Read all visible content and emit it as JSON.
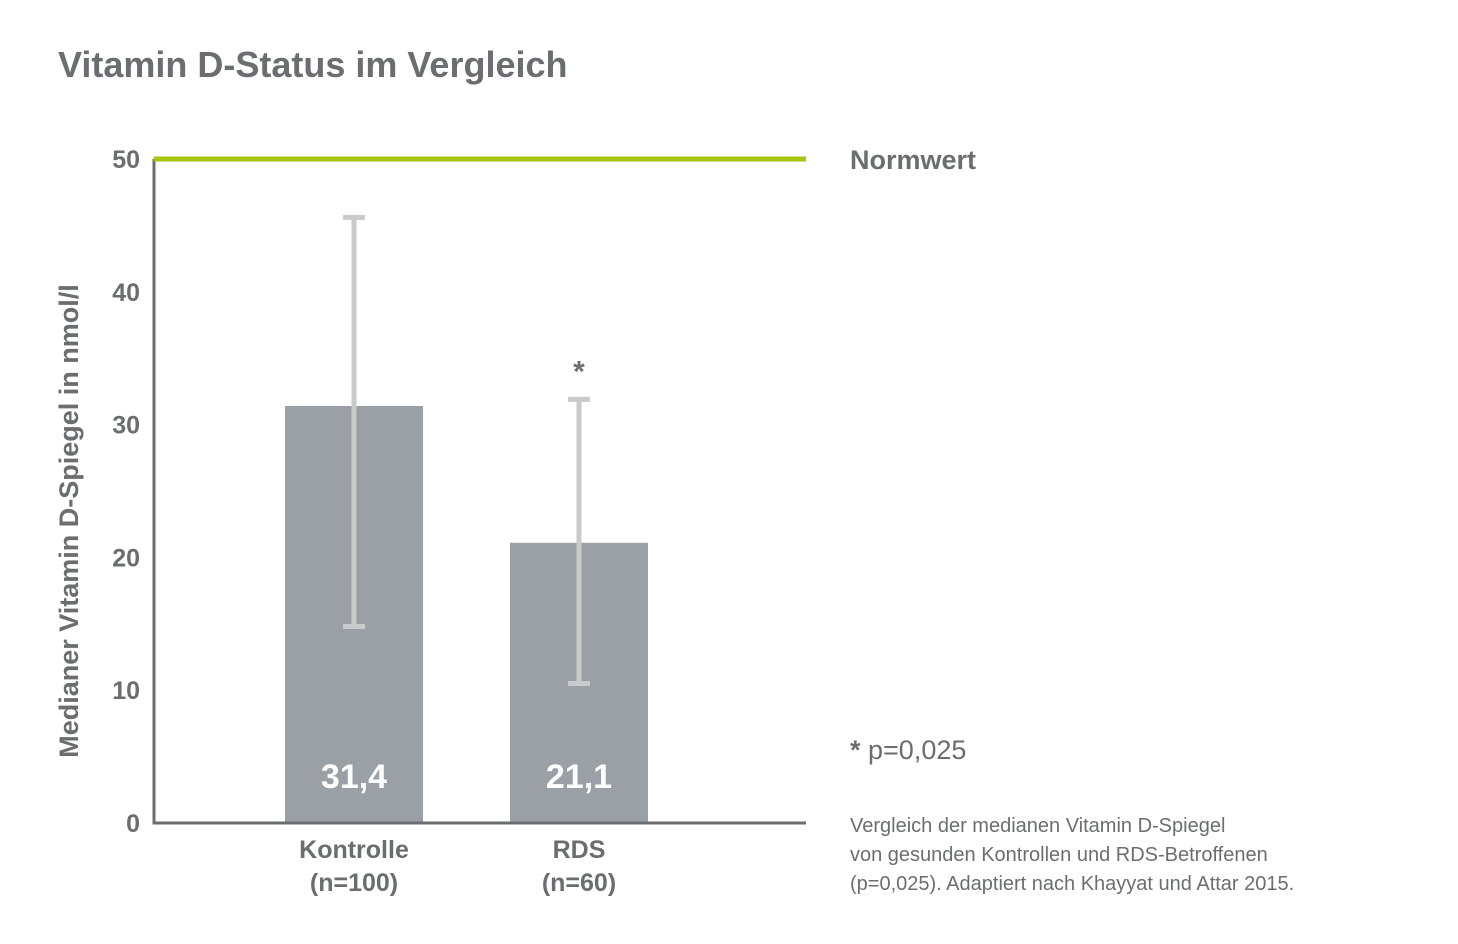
{
  "title": "Vitamin D-Status im Vergleich",
  "chart_data": {
    "type": "bar",
    "ylabel": "Medianer Vitamin D-Spiegel in nmol/l",
    "ylim": [
      0,
      50
    ],
    "yticks": [
      0,
      10,
      20,
      30,
      40,
      50
    ],
    "categories": [
      {
        "line1": "Kontrolle",
        "line2": "(n=100)"
      },
      {
        "line1": "RDS",
        "line2": "(n=60)"
      }
    ],
    "values": [
      31.4,
      21.1
    ],
    "value_labels": [
      "31,4",
      "21,1"
    ],
    "error_bars": [
      {
        "low": 14.8,
        "high": 45.6
      },
      {
        "low": 10.5,
        "high": 31.9
      }
    ],
    "significance_markers": [
      "",
      "*"
    ],
    "reference_line": {
      "value": 50,
      "label": "Normwert",
      "color": "#a8c40e"
    },
    "colors": {
      "bar": "#9aa0a6",
      "error_bar": "#c8cacb",
      "axis": "#6b6e70",
      "text": "#6b6e70",
      "value_label": "#ffffff"
    }
  },
  "significance_note": {
    "star": "*",
    "text": " p=0,025"
  },
  "caption": [
    "Vergleich der medianen Vitamin D-Spiegel",
    "von gesunden Kontrollen und RDS-Betroffenen",
    "(p=0,025). Adaptiert nach Khayyat und Attar 2015."
  ]
}
